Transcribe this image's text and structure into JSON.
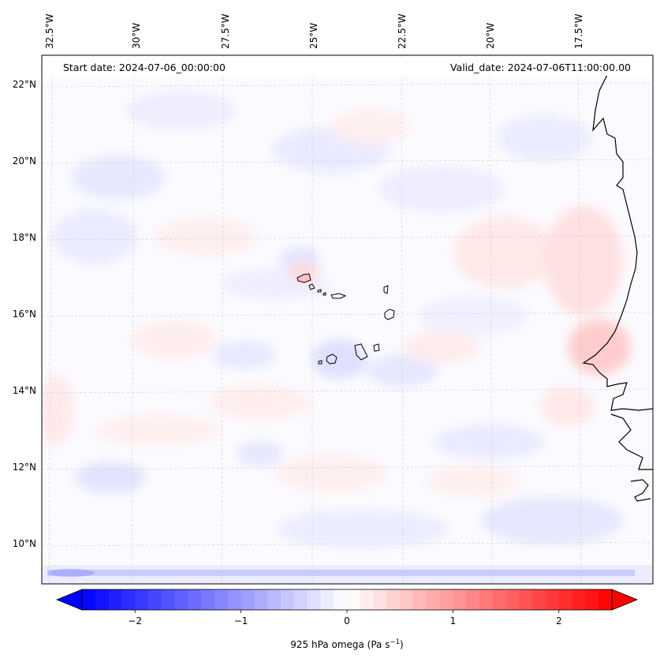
{
  "header": {
    "start_date": "Start date: 2024-07-06_00:00:00",
    "valid_date": "Valid_date: 2024-07-06T11:00:00.00"
  },
  "map": {
    "variable": "925 hPa omega",
    "units": "Pa s",
    "units_exponent": "−1",
    "lon_labels": [
      "32.5°W",
      "30°W",
      "27.5°W",
      "25°W",
      "22.5°W",
      "20°W",
      "17.5°W"
    ],
    "lat_labels": [
      "22°N",
      "20°N",
      "18°N",
      "16°N",
      "14°N",
      "12°N",
      "10°N"
    ],
    "gridlines": true
  },
  "colorbar": {
    "cmap": "bwr",
    "ticks": [
      "−2",
      "−1",
      "0",
      "1",
      "2"
    ],
    "tick_values": [
      -2,
      -1,
      0,
      1,
      2
    ],
    "range": [
      -2.5,
      2.5
    ],
    "extend": "both",
    "colors": {
      "min": "#0000ff",
      "mid": "#ffffff",
      "max": "#ff0000"
    }
  }
}
